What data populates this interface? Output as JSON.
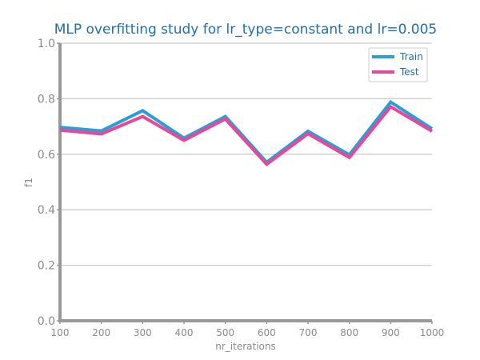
{
  "chart_data": {
    "type": "line",
    "title": "MLP overfitting study for lr_type=constant and lr=0.005",
    "xlabel": "nr_iterations",
    "ylabel": "f1",
    "x": [
      100,
      200,
      300,
      400,
      500,
      600,
      700,
      800,
      900,
      1000
    ],
    "xlim": [
      100,
      1000
    ],
    "ylim": [
      0.0,
      1.0
    ],
    "yticks": [
      "0.0",
      "0.2",
      "0.4",
      "0.6",
      "0.8",
      "1.0"
    ],
    "xticks": [
      "100",
      "200",
      "300",
      "400",
      "500",
      "600",
      "700",
      "800",
      "900",
      "1000"
    ],
    "grid": "horizontal",
    "legend_position": "top-right",
    "series": [
      {
        "name": "Train",
        "color": "#2a9fd6",
        "values": [
          0.697,
          0.684,
          0.757,
          0.658,
          0.736,
          0.571,
          0.683,
          0.598,
          0.788,
          0.692
        ]
      },
      {
        "name": "Test",
        "color": "#e8479a",
        "values": [
          0.687,
          0.673,
          0.736,
          0.65,
          0.727,
          0.564,
          0.674,
          0.588,
          0.771,
          0.683
        ]
      }
    ]
  }
}
